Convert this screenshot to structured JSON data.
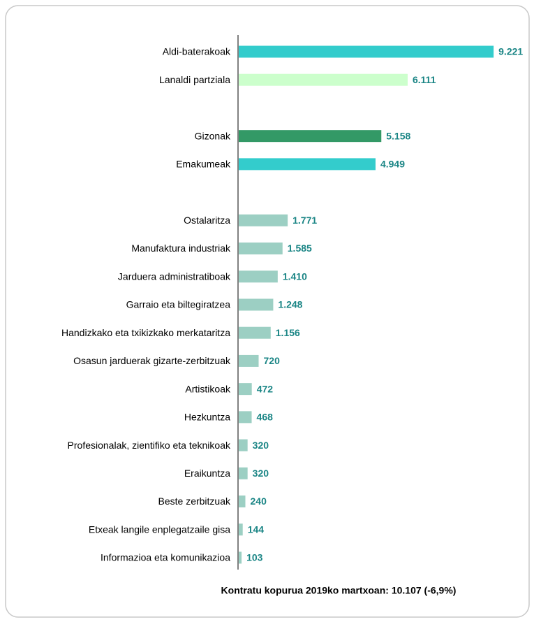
{
  "chart_data": {
    "type": "bar",
    "orientation": "horizontal",
    "categories": [
      "Aldi-baterakoak",
      "Lanaldi partziala",
      null,
      "Gizonak",
      "Emakumeak",
      null,
      "Ostalaritza",
      "Manufaktura industriak",
      "Jarduera administratiboak",
      "Garraio eta biltegiratzea",
      "Handizkako eta txikizkako merkataritza",
      "Osasun jarduerak gizarte-zerbitzuak",
      "Artistikoak",
      "Hezkuntza",
      "Profesionalak, zientifiko eta teknikoak",
      "Eraikuntza",
      "Beste zerbitzuak",
      "Etxeak langile enplegatzaile gisa",
      "Informazioa eta komunikazioa"
    ],
    "values": [
      9221,
      6111,
      null,
      5158,
      4949,
      null,
      1771,
      1585,
      1410,
      1248,
      1156,
      720,
      472,
      468,
      320,
      320,
      240,
      144,
      103
    ],
    "value_labels": [
      "9.221",
      "6.111",
      null,
      "5.158",
      "4.949",
      null,
      "1.771",
      "1.585",
      "1.410",
      "1.248",
      "1.156",
      "720",
      "472",
      "468",
      "320",
      "320",
      "240",
      "144",
      "103"
    ],
    "colors": [
      "#33cccc",
      "#ccffcc",
      null,
      "#339966",
      "#33cccc",
      null,
      "#9ccfc3",
      "#9ccfc3",
      "#9ccfc3",
      "#9ccfc3",
      "#9ccfc3",
      "#9ccfc3",
      "#9ccfc3",
      "#9ccfc3",
      "#9ccfc3",
      "#9ccfc3",
      "#9ccfc3",
      "#9ccfc3",
      "#9ccfc3"
    ],
    "xlim": [
      0,
      10000
    ],
    "annotation": "Kontratu kopurua 2019ko martxoan: 10.107 (-6,9%)"
  }
}
